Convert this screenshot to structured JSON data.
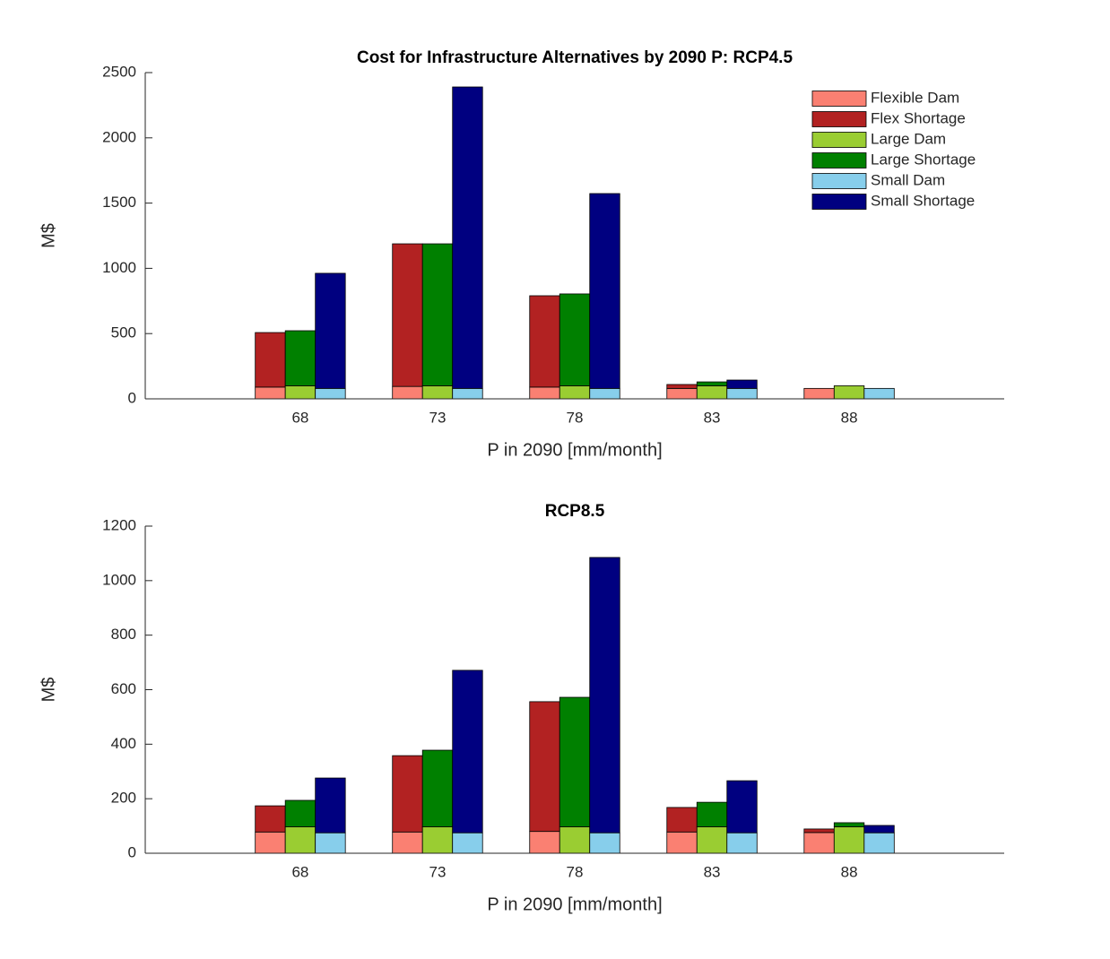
{
  "chart_data": [
    {
      "type": "bar",
      "title": "Cost for Infrastructure Alternatives by 2090 P: RCP4.5",
      "xlabel": "P in 2090 [mm/month]",
      "ylabel": "M$",
      "categories": [
        "68",
        "73",
        "78",
        "83",
        "88"
      ],
      "ylim": [
        0,
        2500
      ],
      "yticks": [
        0,
        500,
        1000,
        1500,
        2000,
        2500
      ],
      "legend": "upper right",
      "series": [
        {
          "name": "Flexible Dam",
          "color": "#fa8072",
          "values": [
            90,
            95,
            90,
            80,
            80
          ]
        },
        {
          "name": "Flex Shortage",
          "color": "#b22222",
          "values": [
            418,
            1093,
            700,
            30,
            0
          ]
        },
        {
          "name": "Large Dam",
          "color": "#9acd32",
          "values": [
            100,
            100,
            100,
            100,
            100
          ]
        },
        {
          "name": "Large Shortage",
          "color": "#008000",
          "values": [
            422,
            1088,
            704,
            30,
            0
          ]
        },
        {
          "name": "Small Dam",
          "color": "#87ceeb",
          "values": [
            80,
            80,
            80,
            80,
            80
          ]
        },
        {
          "name": "Small Shortage",
          "color": "#000080",
          "values": [
            882,
            2310,
            1493,
            64,
            0
          ]
        }
      ]
    },
    {
      "type": "bar",
      "title": "RCP8.5",
      "xlabel": "P in 2090 [mm/month]",
      "ylabel": "M$",
      "categories": [
        "68",
        "73",
        "78",
        "83",
        "88"
      ],
      "ylim": [
        0,
        1200
      ],
      "yticks": [
        0,
        200,
        400,
        600,
        800,
        1000,
        1200
      ],
      "series": [
        {
          "color": "#fa8072",
          "values": [
            78,
            78,
            80,
            78,
            76
          ]
        },
        {
          "color": "#b22222",
          "values": [
            96,
            280,
            476,
            90,
            13
          ]
        },
        {
          "color": "#9acd32",
          "values": [
            97,
            97,
            97,
            97,
            97
          ]
        },
        {
          "color": "#008000",
          "values": [
            97,
            281,
            475,
            90,
            15
          ]
        },
        {
          "color": "#87ceeb",
          "values": [
            75,
            75,
            75,
            75,
            75
          ]
        },
        {
          "color": "#000080",
          "values": [
            201,
            596,
            1010,
            191,
            27
          ]
        }
      ]
    }
  ]
}
